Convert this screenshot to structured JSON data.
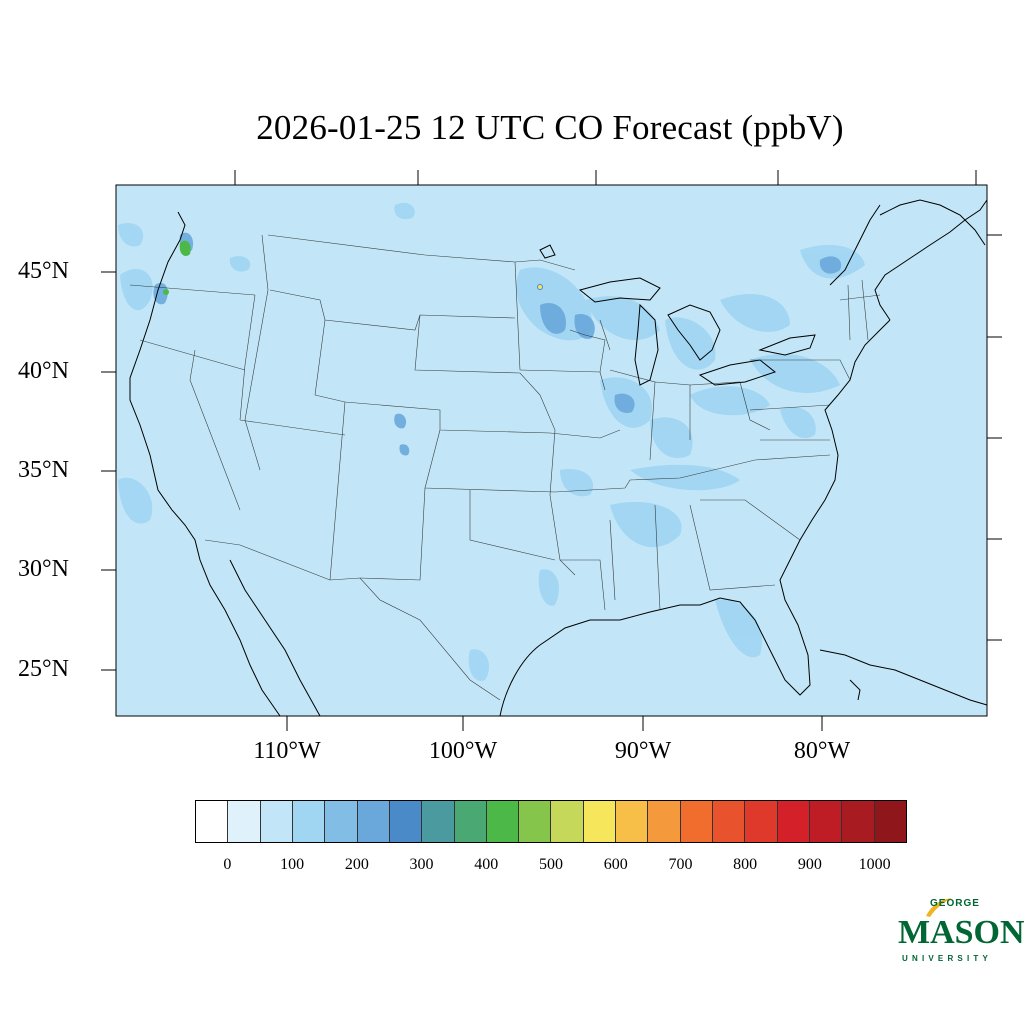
{
  "title": "2026-01-25 12 UTC CO Forecast (ppbV)",
  "map": {
    "background_color": "#c2e6f7",
    "lat_labels": [
      "45°N",
      "40°N",
      "35°N",
      "30°N",
      "25°N"
    ],
    "lon_labels": [
      "110°W",
      "100°W",
      "90°W",
      "80°W"
    ],
    "notable_features": [
      {
        "name": "seattle-high-co",
        "color": "#4cb847"
      },
      {
        "name": "upper-midwest-elevated",
        "color": "#6aa8dc"
      }
    ]
  },
  "colorbar": {
    "colors": [
      "#ffffff",
      "#dff1fb",
      "#c2e6f7",
      "#a1d6f2",
      "#82bde6",
      "#6aa8dc",
      "#4a8ac9",
      "#4a9aa0",
      "#4aa872",
      "#4cb847",
      "#86c54c",
      "#c5d85a",
      "#f6e65c",
      "#f7bf48",
      "#f59a3c",
      "#f06d2e",
      "#e8522d",
      "#de392a",
      "#d42028",
      "#be1d25",
      "#a71b21",
      "#8f171b"
    ],
    "tick_labels": [
      "0",
      "100",
      "200",
      "300",
      "400",
      "500",
      "600",
      "700",
      "800",
      "900",
      "1000"
    ]
  },
  "logo": {
    "top": "GEORGE",
    "main": "MASON",
    "bottom": "UNIVERSITY",
    "color": "#006633",
    "accent": "#f0b323"
  }
}
